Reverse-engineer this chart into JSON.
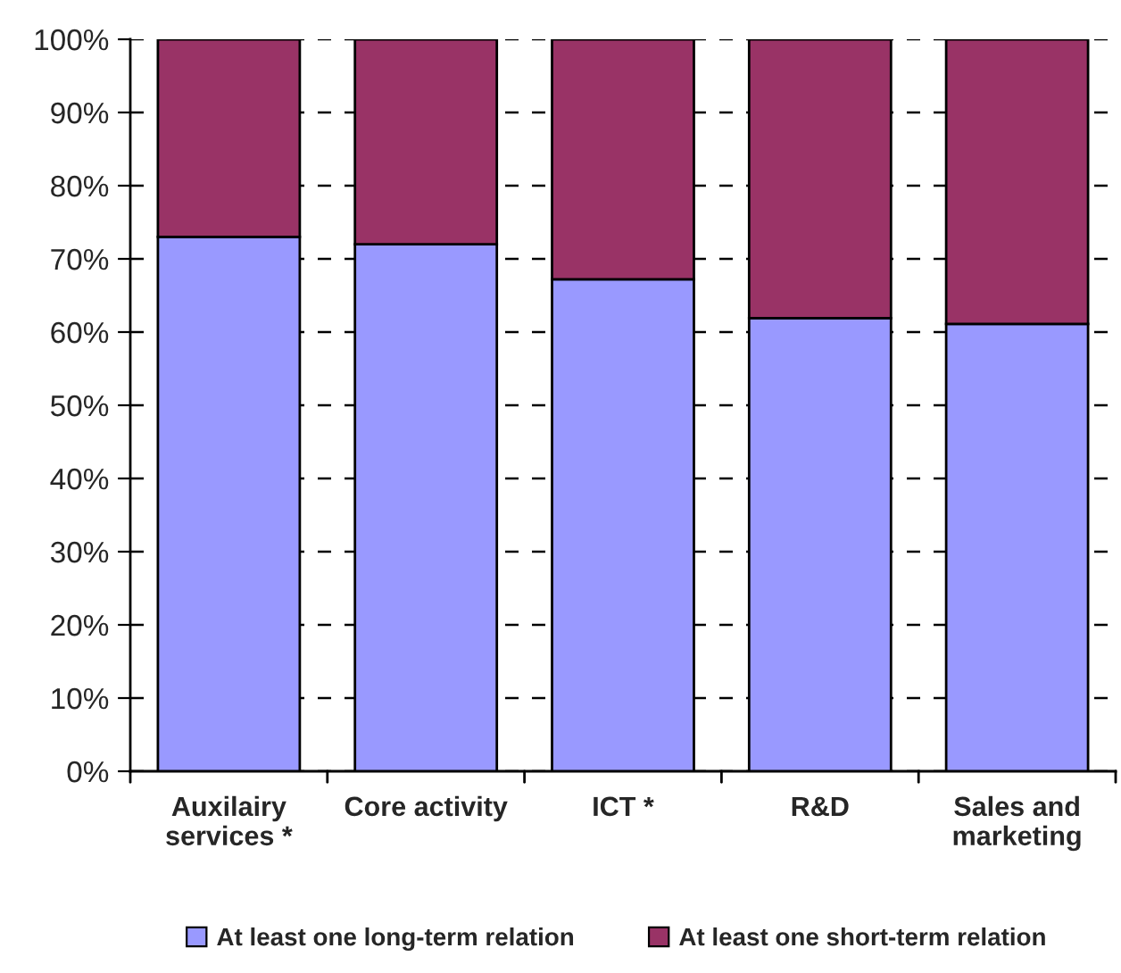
{
  "chart_data": {
    "type": "bar",
    "stacked": true,
    "categories": [
      "Auxilairy\nservices *",
      "Core activity",
      "ICT *",
      "R&D",
      "Sales and\nmarketing"
    ],
    "series": [
      {
        "name": "At least one long-term relation",
        "color": "#9999ff",
        "values": [
          73,
          72,
          67.2,
          61.9,
          61.1
        ]
      },
      {
        "name": "At least one short-term relation",
        "color": "#993366",
        "values": [
          27,
          28,
          32.8,
          38.1,
          38.9
        ]
      }
    ],
    "ylim": [
      0,
      100
    ],
    "yticks": [
      {
        "value": 0,
        "label": "0%"
      },
      {
        "value": 10,
        "label": "10%"
      },
      {
        "value": 20,
        "label": "20%"
      },
      {
        "value": 30,
        "label": "30%"
      },
      {
        "value": 40,
        "label": "40%"
      },
      {
        "value": 50,
        "label": "50%"
      },
      {
        "value": 60,
        "label": "60%"
      },
      {
        "value": 70,
        "label": "70%"
      },
      {
        "value": 80,
        "label": "80%"
      },
      {
        "value": 90,
        "label": "90%"
      },
      {
        "value": 100,
        "label": "100%"
      }
    ],
    "grid": "y",
    "legend": "bottom"
  }
}
